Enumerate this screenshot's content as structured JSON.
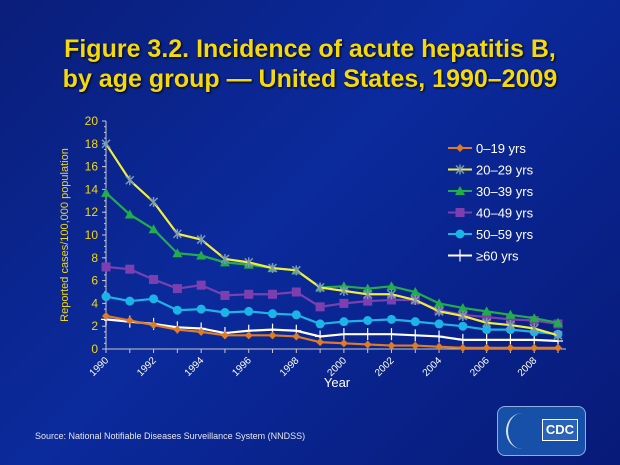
{
  "chart_data": {
    "type": "line",
    "title_line1": "Figure 3.2. Incidence of acute hepatitis B,",
    "title_line2": "by age group — United States, 1990–2009",
    "xlabel": "Year",
    "ylabel": "Reported cases/100,000 population",
    "ylim": [
      0,
      20
    ],
    "yticks": [
      0,
      2,
      4,
      6,
      8,
      10,
      12,
      14,
      16,
      18,
      20
    ],
    "xticks": [
      "1990",
      "1992",
      "1994",
      "1996",
      "1998",
      "2000",
      "2002",
      "2004",
      "2006",
      "2008"
    ],
    "x": [
      1990,
      1991,
      1992,
      1993,
      1994,
      1995,
      1996,
      1997,
      1998,
      1999,
      2000,
      2001,
      2002,
      2003,
      2004,
      2005,
      2006,
      2007,
      2008,
      2009
    ],
    "legend_position": "right",
    "grid": false,
    "series": [
      {
        "name": "0–19 yrs",
        "color": "#e07b25",
        "marker": "diamond",
        "values": [
          2.9,
          2.5,
          2.1,
          1.7,
          1.5,
          1.2,
          1.2,
          1.2,
          1.1,
          0.6,
          0.5,
          0.4,
          0.3,
          0.3,
          0.2,
          0.1,
          0.1,
          0.1,
          0.1,
          0.1
        ]
      },
      {
        "name": "20–29 yrs",
        "color": "#f0f03c",
        "marker": "star",
        "values": [
          18.0,
          14.8,
          12.9,
          10.1,
          9.6,
          7.9,
          7.6,
          7.1,
          6.9,
          5.4,
          5.1,
          4.8,
          4.8,
          4.3,
          3.3,
          2.9,
          2.3,
          2.1,
          1.8,
          1.2
        ]
      },
      {
        "name": "30–39 yrs",
        "color": "#1fae4a",
        "marker": "triangle",
        "values": [
          13.7,
          11.8,
          10.5,
          8.4,
          8.2,
          7.6,
          7.4,
          7.1,
          6.9,
          5.4,
          5.5,
          5.3,
          5.5,
          5.0,
          4.0,
          3.6,
          3.3,
          3.0,
          2.7,
          2.3
        ]
      },
      {
        "name": "40–49 yrs",
        "color": "#7b3fb0",
        "marker": "square",
        "values": [
          7.2,
          7.0,
          6.1,
          5.3,
          5.6,
          4.7,
          4.8,
          4.8,
          5.0,
          3.7,
          4.0,
          4.2,
          4.3,
          4.3,
          3.4,
          3.0,
          2.8,
          2.6,
          2.5,
          2.2
        ]
      },
      {
        "name": "50–59 yrs",
        "color": "#1cb4e8",
        "marker": "circle",
        "values": [
          4.6,
          4.2,
          4.4,
          3.4,
          3.5,
          3.2,
          3.3,
          3.1,
          3.0,
          2.2,
          2.4,
          2.5,
          2.6,
          2.4,
          2.2,
          2.0,
          1.7,
          1.7,
          1.5,
          1.3
        ]
      },
      {
        "name": "≥60 yrs",
        "color": "#ffffff",
        "marker": "plus",
        "values": [
          2.6,
          2.4,
          2.2,
          1.9,
          1.8,
          1.4,
          1.6,
          1.7,
          1.6,
          1.1,
          1.3,
          1.3,
          1.3,
          1.2,
          1.1,
          0.8,
          0.8,
          0.8,
          0.8,
          0.7
        ]
      }
    ]
  },
  "source": "Source: National Notifiable Diseases Surveillance System (NNDSS)",
  "logo": {
    "text": "CDC"
  }
}
